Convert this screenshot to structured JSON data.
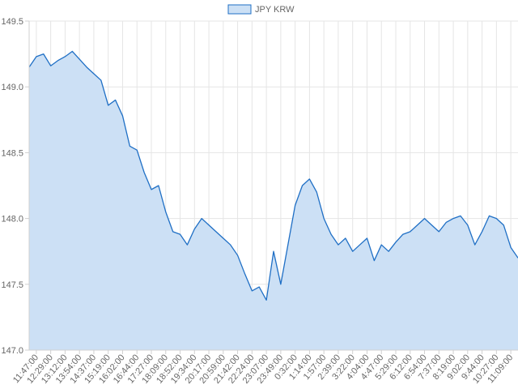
{
  "chart_data": {
    "type": "area",
    "title": "",
    "xlabel": "",
    "ylabel": "",
    "ylim": [
      147.0,
      149.5
    ],
    "yticks": [
      147.0,
      147.5,
      148.0,
      148.5,
      149.0,
      149.5
    ],
    "ytick_labels": [
      "147.0",
      "147.5",
      "148.0",
      "148.5",
      "149.0",
      "149.5"
    ],
    "grid": true,
    "legend": "top-center",
    "x_tick_labels": [
      "11:47:00",
      "12:29:00",
      "13:12:00",
      "13:54:00",
      "14:37:00",
      "15:19:00",
      "16:02:00",
      "16:44:00",
      "17:27:00",
      "18:09:00",
      "18:52:00",
      "19:34:00",
      "20:17:00",
      "20:59:00",
      "21:42:00",
      "22:24:00",
      "23:07:00",
      "23:49:00",
      "0:32:00",
      "1:14:00",
      "1:57:00",
      "2:39:00",
      "3:22:00",
      "4:04:00",
      "4:47:00",
      "5:29:00",
      "6:12:00",
      "6:54:00",
      "7:37:00",
      "8:19:00",
      "9:02:00",
      "9:44:00",
      "10:27:00",
      "11:09:00"
    ],
    "series": [
      {
        "name": "JPY KRW",
        "color": "#1f6fc5",
        "fill": "#cce0f5",
        "values": [
          149.15,
          149.23,
          149.25,
          149.16,
          149.2,
          149.23,
          149.27,
          149.21,
          149.15,
          149.1,
          149.05,
          148.86,
          148.9,
          148.78,
          148.55,
          148.52,
          148.35,
          148.22,
          148.25,
          148.05,
          147.9,
          147.88,
          147.8,
          147.92,
          148.0,
          147.95,
          147.9,
          147.85,
          147.8,
          147.72,
          147.58,
          147.45,
          147.48,
          147.38,
          147.75,
          147.5,
          147.8,
          148.1,
          148.25,
          148.3,
          148.2,
          148.0,
          147.88,
          147.8,
          147.85,
          147.75,
          147.8,
          147.85,
          147.68,
          147.8,
          147.75,
          147.82,
          147.88,
          147.9,
          147.95,
          148.0,
          147.95,
          147.9,
          147.97,
          148.0,
          148.02,
          147.95,
          147.8,
          147.9,
          148.02,
          148.0,
          147.95,
          147.78,
          147.7
        ]
      }
    ]
  }
}
